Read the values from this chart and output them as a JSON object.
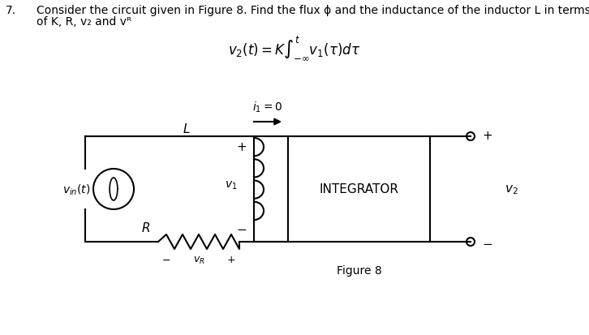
{
  "background_color": "#ffffff",
  "circuit_color": "#000000",
  "text_color": "#000000",
  "title_num": "7.",
  "title_line1": "Consider the circuit given in Figure 8. Find the flux ϕ and the inductance of the inductor L in terms",
  "title_line2": "of K, R, v₂ and vᴿ",
  "formula_text": "$v_2(t) = K\\int_{-\\infty}^{t} v_1(\\tau)d\\tau$",
  "fig_label": "Figure 8",
  "integrator_label": "INTEGRATOR",
  "vin_label": "$v_{in}(t)$",
  "L_label": "L",
  "v1_label": "$v_1$",
  "R_label": "R",
  "vR_label": "$v_R$",
  "v2_label": "$v_2$",
  "i1_label": "$i_1=0$",
  "plus": "+",
  "minus": "−"
}
